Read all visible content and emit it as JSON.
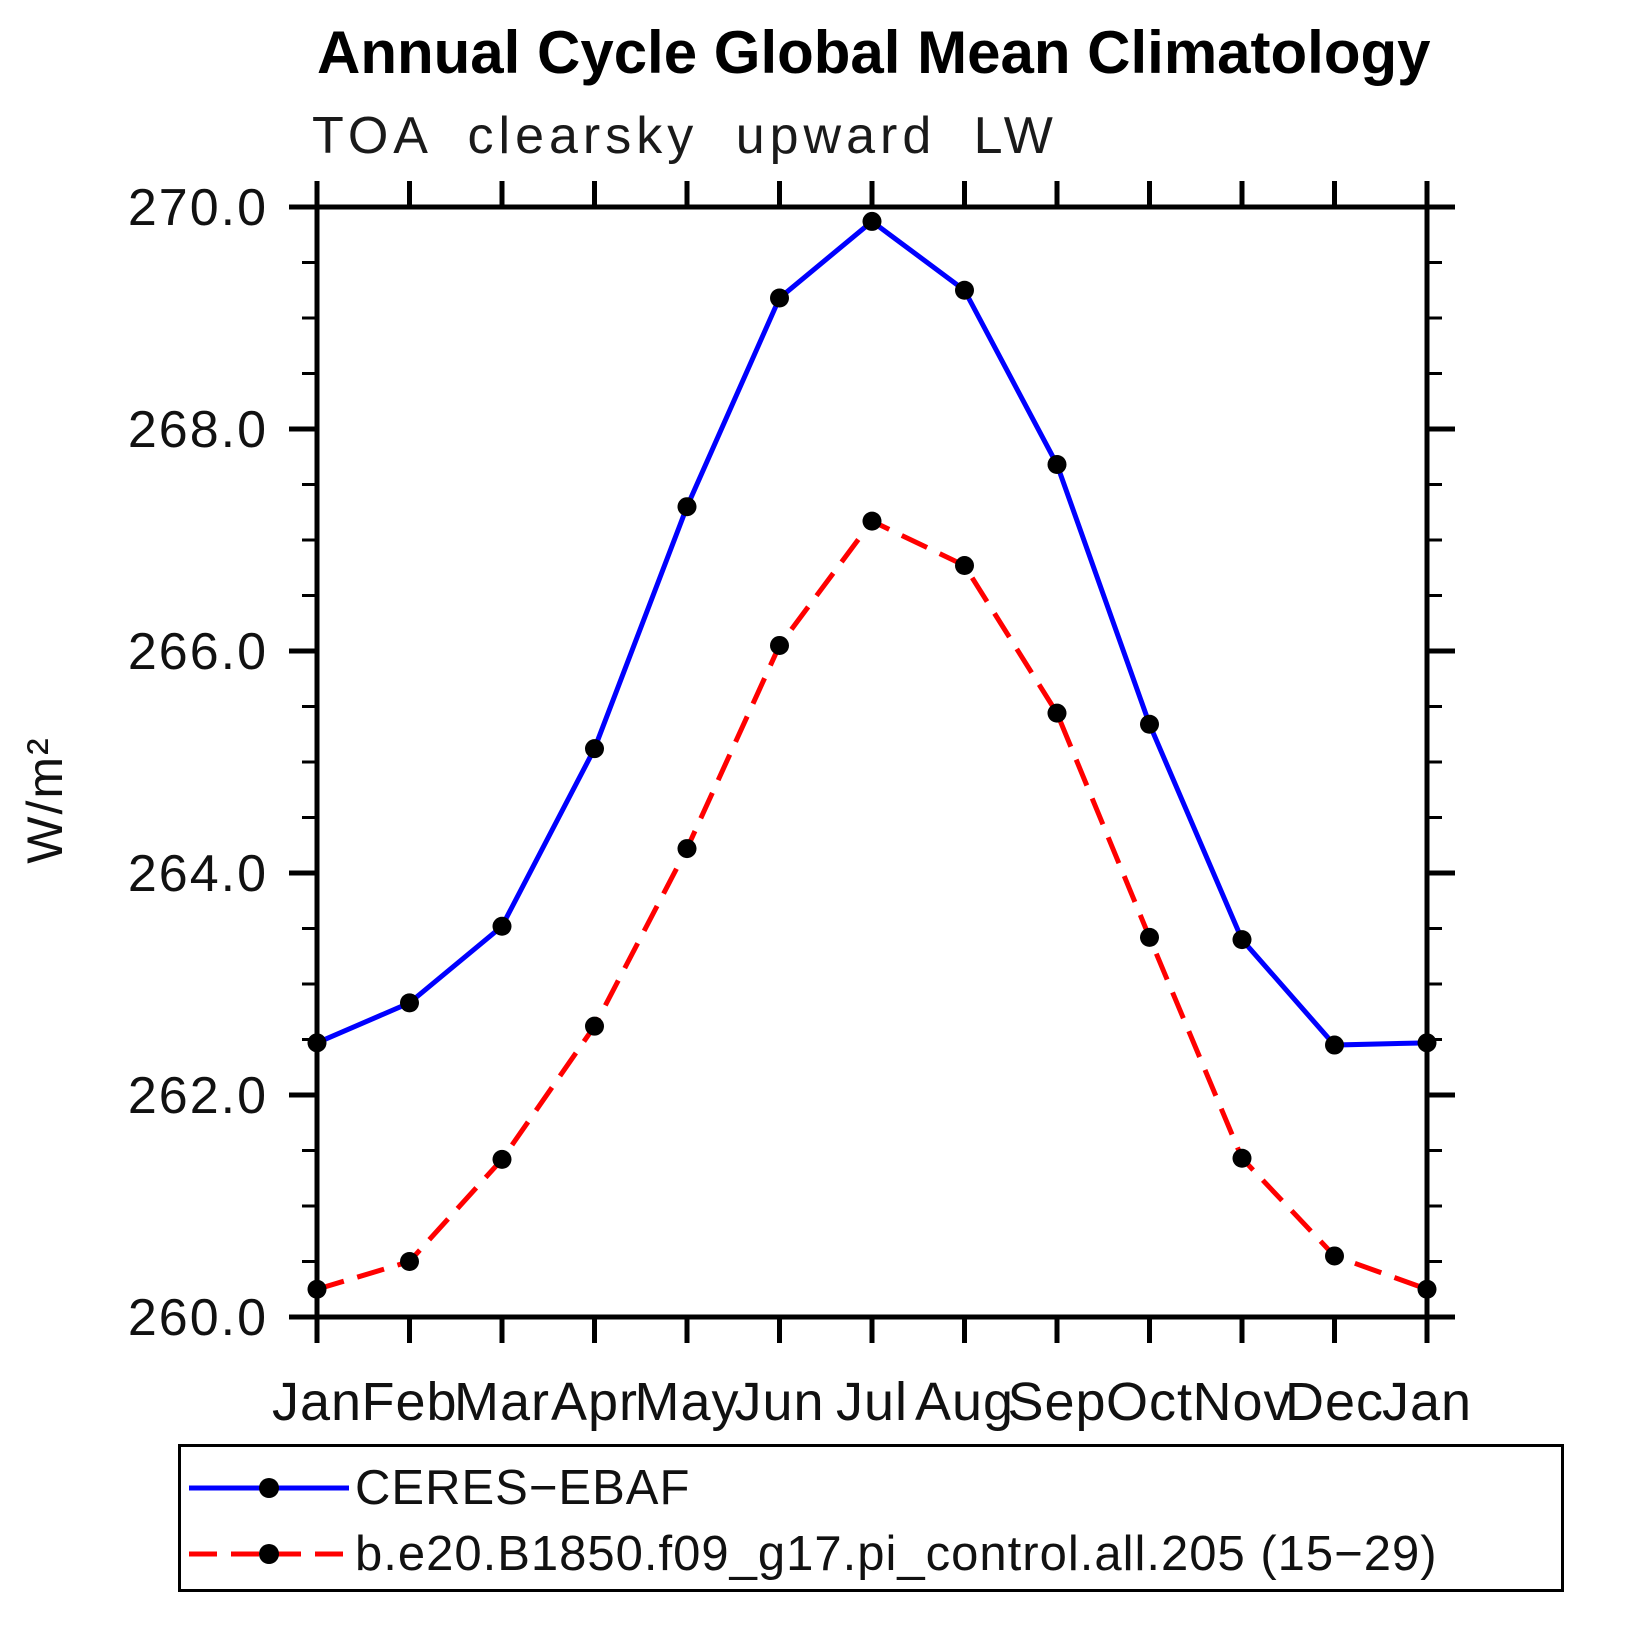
{
  "chart_data": {
    "type": "line",
    "title": "Annual Cycle Global Mean Climatology",
    "subtitle": "TOA clearsky upward LW",
    "xlabel": "",
    "ylabel": "W/m²",
    "categories": [
      "Jan",
      "Feb",
      "Mar",
      "Apr",
      "May",
      "Jun",
      "Jul",
      "Aug",
      "Sep",
      "Oct",
      "Nov",
      "Dec",
      "Jan"
    ],
    "ylim": [
      260.0,
      270.0
    ],
    "ytick_major": [
      260.0,
      262.0,
      264.0,
      266.0,
      268.0,
      270.0
    ],
    "ytick_labels": [
      "260.0",
      "262.0",
      "264.0",
      "266.0",
      "268.0",
      "270.0"
    ],
    "ytick_minor_step": 0.5,
    "grid": false,
    "legend_position": "bottom",
    "series": [
      {
        "name": "CERES−EBAF",
        "color": "#0000ff",
        "style": "solid",
        "marker": "circle",
        "marker_color": "#000000",
        "values": [
          262.47,
          262.83,
          263.52,
          265.12,
          267.3,
          269.18,
          269.87,
          269.25,
          267.68,
          265.34,
          263.4,
          262.45,
          262.47
        ]
      },
      {
        "name": "b.e20.B1850.f09_g17.pi_control.all.205 (15−29)",
        "color": "#ff0000",
        "style": "dashed",
        "marker": "circle",
        "marker_color": "#000000",
        "values": [
          260.25,
          260.5,
          261.42,
          262.62,
          264.22,
          266.05,
          267.17,
          266.77,
          265.44,
          263.42,
          261.43,
          260.55,
          260.25
        ]
      }
    ]
  }
}
